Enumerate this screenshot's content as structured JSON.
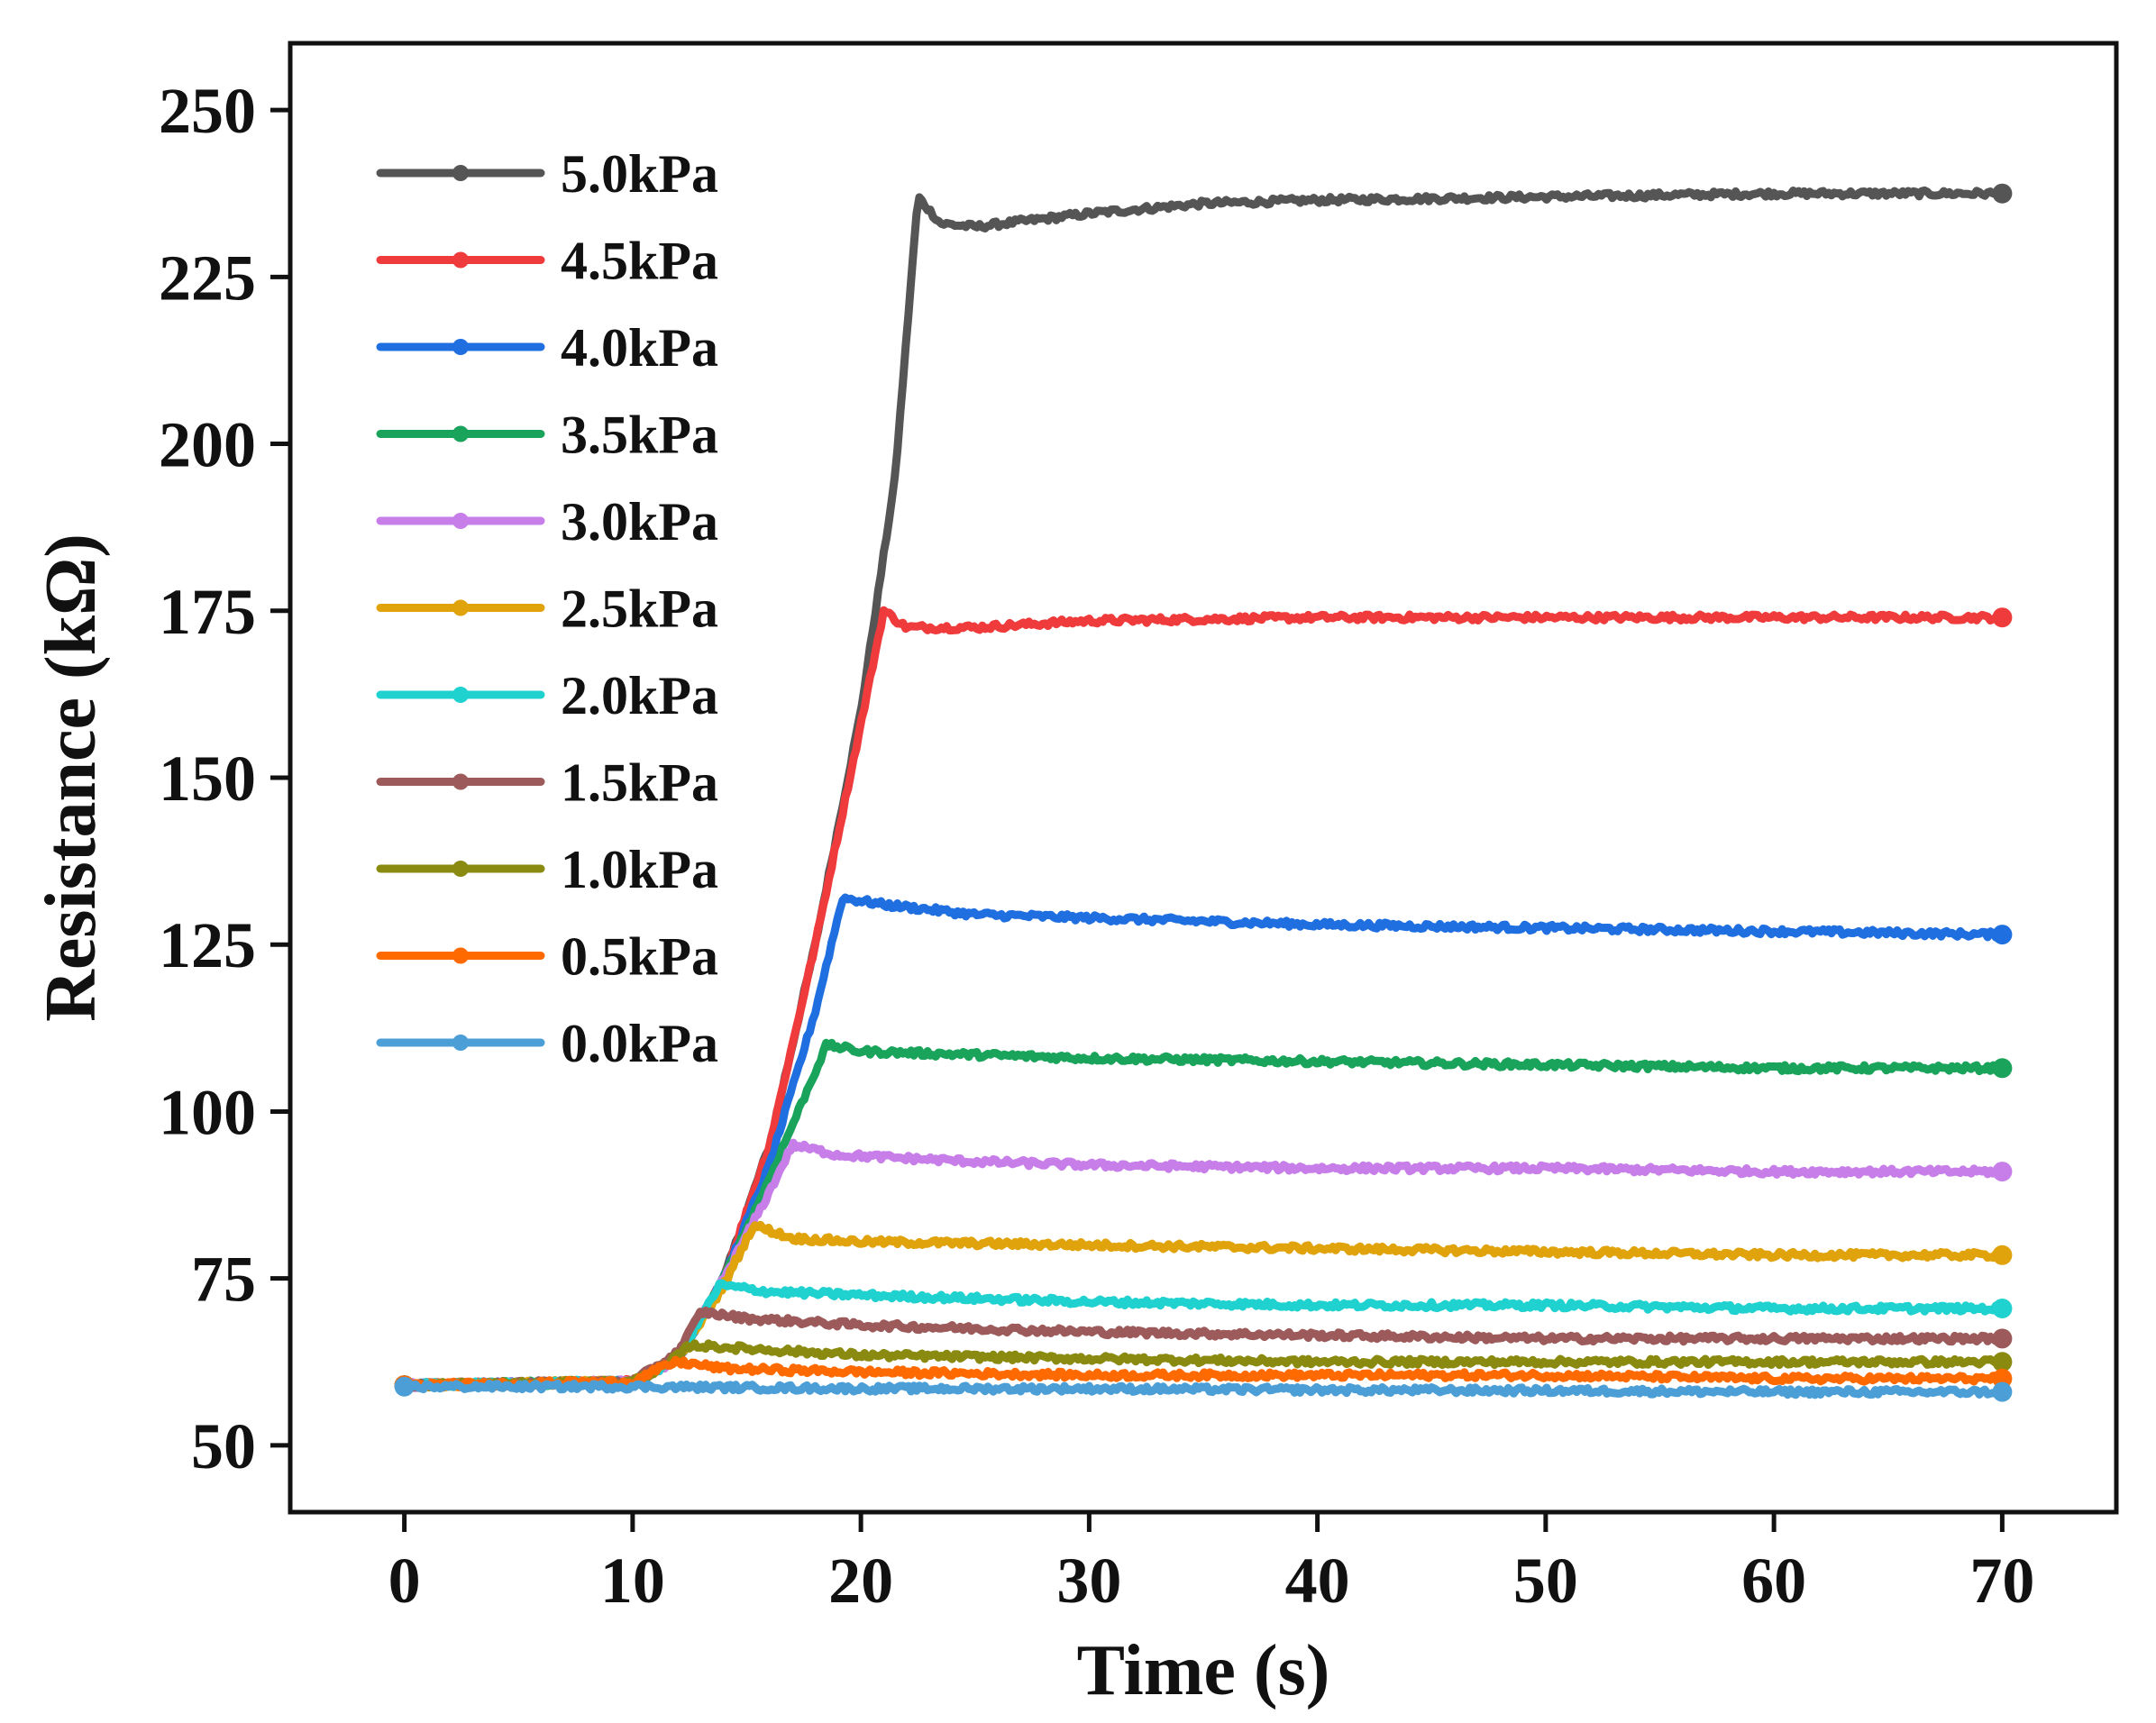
{
  "chart_data": {
    "type": "line",
    "title": "",
    "xlabel": "Time (s)",
    "ylabel": "Resistance (kΩ)",
    "xlim": [
      -5,
      75
    ],
    "ylim": [
      40,
      260
    ],
    "x_ticks": [
      0,
      10,
      20,
      30,
      40,
      50,
      60,
      70
    ],
    "y_ticks": [
      50,
      75,
      100,
      125,
      150,
      175,
      200,
      225,
      250
    ],
    "grid": false,
    "legend_position": "top-left",
    "series": [
      {
        "name": "5.0kPa",
        "color": "#555555",
        "points": [
          [
            0,
            59
          ],
          [
            10,
            59.5
          ],
          [
            12,
            63
          ],
          [
            14,
            75
          ],
          [
            16,
            95
          ],
          [
            18,
            125
          ],
          [
            20,
            160
          ],
          [
            21.5,
            195
          ],
          [
            22.5,
            237
          ],
          [
            23.5,
            233
          ],
          [
            25,
            232.5
          ],
          [
            30,
            234.5
          ],
          [
            35,
            236
          ],
          [
            40,
            236.5
          ],
          [
            50,
            237
          ],
          [
            60,
            237.5
          ],
          [
            70,
            237.5
          ]
        ]
      },
      {
        "name": "4.5kPa",
        "color": "#ef3b3b",
        "points": [
          [
            0,
            59
          ],
          [
            10,
            59.5
          ],
          [
            12,
            63
          ],
          [
            14,
            75
          ],
          [
            16,
            95
          ],
          [
            18,
            125
          ],
          [
            20,
            158
          ],
          [
            21,
            175
          ],
          [
            22,
            172.5
          ],
          [
            25,
            172.5
          ],
          [
            30,
            173.5
          ],
          [
            40,
            174
          ],
          [
            50,
            174
          ],
          [
            60,
            174
          ],
          [
            70,
            174
          ]
        ]
      },
      {
        "name": "4.0kPa",
        "color": "#1f6fe0",
        "points": [
          [
            0,
            59
          ],
          [
            10,
            59.5
          ],
          [
            12,
            63
          ],
          [
            14,
            75
          ],
          [
            16,
            92
          ],
          [
            18,
            115
          ],
          [
            19.2,
            132
          ],
          [
            21,
            131
          ],
          [
            25,
            129.5
          ],
          [
            30,
            129
          ],
          [
            40,
            128
          ],
          [
            50,
            127.5
          ],
          [
            60,
            127
          ],
          [
            70,
            126.5
          ]
        ]
      },
      {
        "name": "3.5kPa",
        "color": "#1aa35a",
        "points": [
          [
            0,
            59
          ],
          [
            10,
            59.5
          ],
          [
            12,
            63
          ],
          [
            14,
            75
          ],
          [
            16,
            90
          ],
          [
            18,
            106
          ],
          [
            18.5,
            110
          ],
          [
            20,
            109
          ],
          [
            25,
            108.5
          ],
          [
            30,
            108
          ],
          [
            40,
            107.5
          ],
          [
            50,
            107
          ],
          [
            60,
            106.5
          ],
          [
            70,
            106.5
          ]
        ]
      },
      {
        "name": "3.0kPa",
        "color": "#c77ee8",
        "points": [
          [
            0,
            59
          ],
          [
            10,
            59.5
          ],
          [
            12,
            63
          ],
          [
            14,
            75
          ],
          [
            16,
            88
          ],
          [
            17,
            95
          ],
          [
            19,
            93.5
          ],
          [
            25,
            92.5
          ],
          [
            30,
            92
          ],
          [
            40,
            91.5
          ],
          [
            50,
            91.5
          ],
          [
            60,
            91
          ],
          [
            70,
            91
          ]
        ]
      },
      {
        "name": "2.5kPa",
        "color": "#e0a30c",
        "points": [
          [
            0,
            59
          ],
          [
            10,
            59.5
          ],
          [
            12,
            63
          ],
          [
            14,
            74
          ],
          [
            15.3,
            83
          ],
          [
            17,
            81
          ],
          [
            20,
            80.5
          ],
          [
            30,
            80
          ],
          [
            40,
            79.5
          ],
          [
            50,
            79
          ],
          [
            60,
            78.5
          ],
          [
            70,
            78.5
          ]
        ]
      },
      {
        "name": "2.0kPa",
        "color": "#1fd1cf",
        "points": [
          [
            0,
            59
          ],
          [
            10,
            59.5
          ],
          [
            12,
            63
          ],
          [
            13.8,
            74
          ],
          [
            16,
            73
          ],
          [
            20,
            72.5
          ],
          [
            30,
            71.5
          ],
          [
            40,
            71
          ],
          [
            50,
            71
          ],
          [
            60,
            70.5
          ],
          [
            70,
            70.5
          ]
        ]
      },
      {
        "name": "1.5kPa",
        "color": "#9c5a5a",
        "points": [
          [
            0,
            59
          ],
          [
            10,
            59.5
          ],
          [
            12,
            64
          ],
          [
            13,
            70
          ],
          [
            15,
            69
          ],
          [
            20,
            68
          ],
          [
            30,
            67
          ],
          [
            40,
            66.5
          ],
          [
            50,
            66
          ],
          [
            60,
            66
          ],
          [
            70,
            66
          ]
        ]
      },
      {
        "name": "1.0kPa",
        "color": "#8a8a10",
        "points": [
          [
            0,
            59
          ],
          [
            10,
            59.5
          ],
          [
            11.5,
            62
          ],
          [
            12.5,
            65
          ],
          [
            15,
            64.5
          ],
          [
            20,
            63.5
          ],
          [
            30,
            63
          ],
          [
            40,
            62.5
          ],
          [
            50,
            62.5
          ],
          [
            60,
            62.5
          ],
          [
            70,
            62.5
          ]
        ]
      },
      {
        "name": "0.5kPa",
        "color": "#ff6a00",
        "points": [
          [
            0,
            59
          ],
          [
            10,
            59.5
          ],
          [
            11.5,
            62
          ],
          [
            12,
            62.5
          ],
          [
            14,
            61.5
          ],
          [
            20,
            61
          ],
          [
            30,
            60.5
          ],
          [
            40,
            60.5
          ],
          [
            50,
            60.5
          ],
          [
            60,
            60
          ],
          [
            70,
            60
          ]
        ]
      },
      {
        "name": "0.0kPa",
        "color": "#4b9fd6",
        "points": [
          [
            0,
            58.8
          ],
          [
            10,
            58.8
          ],
          [
            20,
            58.5
          ],
          [
            30,
            58.5
          ],
          [
            40,
            58.3
          ],
          [
            50,
            58.2
          ],
          [
            60,
            58
          ],
          [
            70,
            58
          ]
        ]
      }
    ]
  }
}
